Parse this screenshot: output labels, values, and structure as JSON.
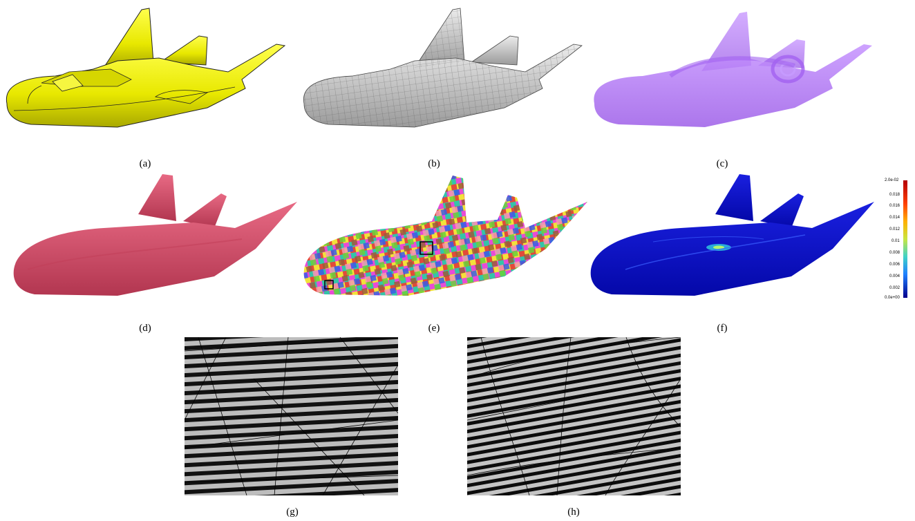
{
  "captions": [
    "(a)",
    "(b)",
    "(c)",
    "(d)",
    "(e)",
    "(f)",
    "(g)",
    "(h)"
  ],
  "colorbar": {
    "ticks": [
      "2.0e-02",
      "0.018",
      "0.016",
      "0.014",
      "0.012",
      "0.01",
      "0.008",
      "0.006",
      "0.004",
      "0.002",
      "0.0e+00"
    ],
    "max": 0.02,
    "min": 0.0
  },
  "colors": {
    "panel_a": "#f2f200",
    "panel_b": "#c8c8c8",
    "panel_c": "#b57cf2",
    "panel_d": "#d74b66",
    "panel_f": "#0a10c8"
  }
}
